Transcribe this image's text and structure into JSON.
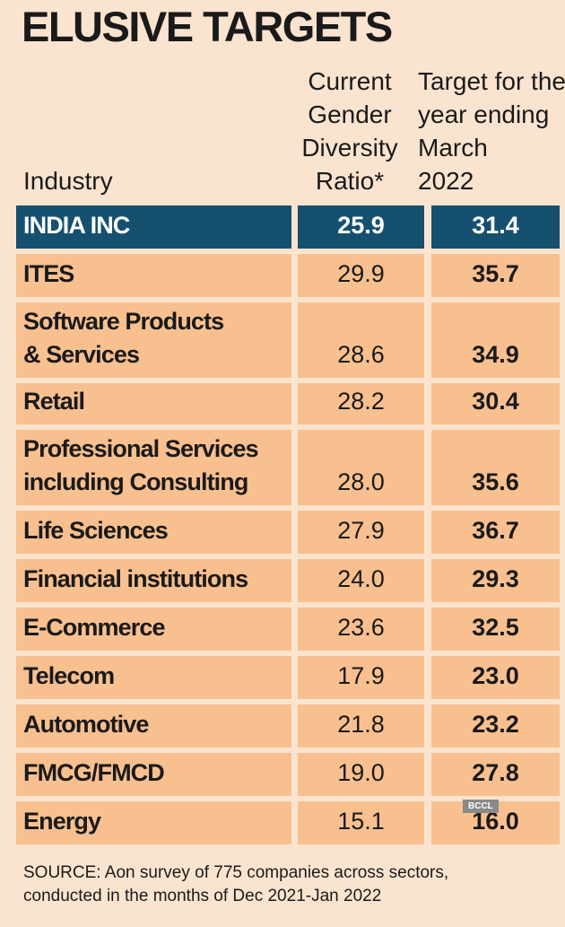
{
  "title": "ELUSIVE TARGETS",
  "table": {
    "headers": [
      [
        "Industry"
      ],
      [
        "Current",
        "Gender",
        "Diversity",
        "Ratio*"
      ],
      [
        "Target for the",
        "year ending",
        "March",
        "2022"
      ]
    ],
    "rows": [
      [
        [
          "INDIA INC"
        ],
        "25.9",
        "31.4"
      ],
      [
        [
          "ITES"
        ],
        "29.9",
        "35.7"
      ],
      [
        [
          "Software Products",
          "& Services"
        ],
        "28.6",
        "34.9"
      ],
      [
        [
          "Retail"
        ],
        "28.2",
        "30.4"
      ],
      [
        [
          "Professional Services",
          "including Consulting"
        ],
        "28.0",
        "35.6"
      ],
      [
        [
          "Life Sciences"
        ],
        "27.9",
        "36.7"
      ],
      [
        [
          "Financial institutions"
        ],
        "24.0",
        "29.3"
      ],
      [
        [
          "E-Commerce"
        ],
        "23.6",
        "32.5"
      ],
      [
        [
          "Telecom"
        ],
        "17.9",
        "23.0"
      ],
      [
        [
          "Automotive"
        ],
        "21.8",
        "23.2"
      ],
      [
        [
          "FMCG/FMCD"
        ],
        "19.0",
        "27.8"
      ],
      [
        [
          "Energy"
        ],
        "15.1",
        "16.0"
      ]
    ]
  },
  "source": [
    "SOURCE: Aon survey of 775 companies across sectors,",
    "conducted in the months of Dec 2021-Jan 2022"
  ],
  "watermark": "BCCL"
}
